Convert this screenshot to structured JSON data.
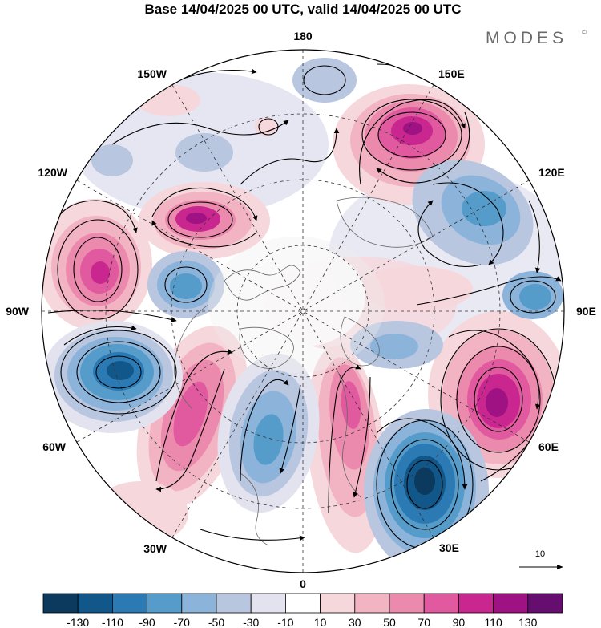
{
  "title": "Base 14/04/2025 00 UTC, valid 14/04/2025 00 UTC",
  "brand": {
    "name": "MODES",
    "mark": "©"
  },
  "longitude_labels": {
    "lon_180": "180",
    "lon_150e": "150E",
    "lon_120e": "120E",
    "lon_90e": "90E",
    "lon_60e": "60E",
    "lon_30e": "30E",
    "lon_0": "0",
    "lon_30w": "30W",
    "lon_60w": "60W",
    "lon_90w": "90W",
    "lon_120w": "120W",
    "lon_150w": "150W"
  },
  "reference_vector": {
    "label": "10"
  },
  "colorbar": {
    "colors": [
      "#0b3a5e",
      "#11578a",
      "#2b7ab4",
      "#559ccb",
      "#8cb3d9",
      "#b8c6e0",
      "#e2e3ef",
      "#ffffff",
      "#f6d7dc",
      "#f2b4c3",
      "#ec8aae",
      "#e15a9f",
      "#c9268f",
      "#9e1284",
      "#660d70"
    ],
    "tick_labels": [
      "-130",
      "-110",
      "-90",
      "-70",
      "-50",
      "-30",
      "-10",
      "10",
      "30",
      "50",
      "70",
      "90",
      "110",
      "130"
    ]
  }
}
